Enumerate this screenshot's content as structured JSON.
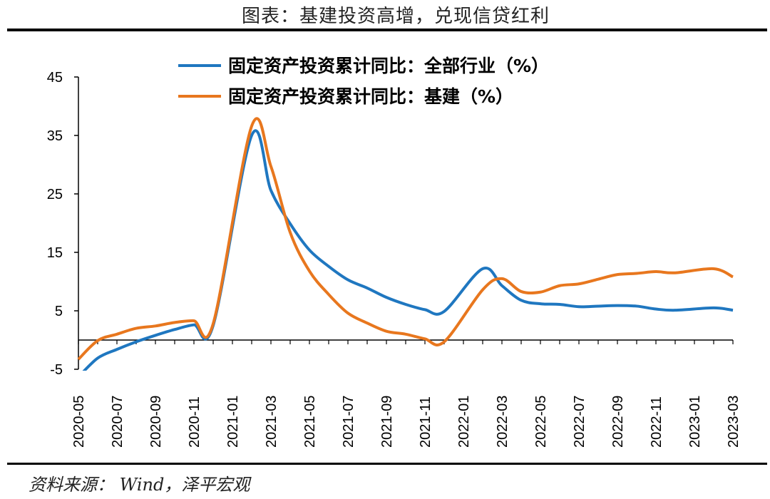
{
  "title": "图表：基建投资高增，兑现信贷红利",
  "source": "资料来源： Wind，泽平宏观",
  "chart_data": {
    "type": "line",
    "title": "图表：基建投资高增，兑现信贷红利",
    "xlabel": "",
    "ylabel": "",
    "ylim": [
      -5,
      45
    ],
    "yticks": [
      "-5",
      "5",
      "15",
      "25",
      "35",
      "45"
    ],
    "grid": false,
    "legend": "top",
    "xticks": [
      "2020-05",
      "2020-07",
      "2020-09",
      "2020-11",
      "2021-01",
      "2021-03",
      "2021-05",
      "2021-07",
      "2021-09",
      "2021-11",
      "2022-01",
      "2022-03",
      "2022-05",
      "2022-07",
      "2022-09",
      "2022-11",
      "2023-01",
      "2023-03"
    ],
    "x": [
      "2020-05",
      "2020-06",
      "2020-07",
      "2020-08",
      "2020-09",
      "2020-10",
      "2020-11",
      "2020-12",
      "2021-01",
      "2021-02",
      "2021-03",
      "2021-04",
      "2021-05",
      "2021-06",
      "2021-07",
      "2021-08",
      "2021-09",
      "2021-10",
      "2021-11",
      "2021-12",
      "2022-01",
      "2022-02",
      "2022-03",
      "2022-04",
      "2022-05",
      "2022-06",
      "2022-07",
      "2022-08",
      "2022-09",
      "2022-10",
      "2022-11",
      "2022-12",
      "2023-01",
      "2023-02",
      "2023-03"
    ],
    "series": [
      {
        "name": "固定资产投资累计同比：全部行业（%）",
        "color": "#1f77c0",
        "values": [
          -6.3,
          -3.1,
          -1.6,
          -0.3,
          0.8,
          1.8,
          2.6,
          2.5,
          null,
          35.0,
          25.6,
          19.9,
          15.4,
          12.6,
          10.3,
          8.9,
          7.3,
          6.1,
          5.2,
          4.9,
          null,
          12.2,
          9.3,
          6.8,
          6.2,
          6.1,
          5.7,
          5.8,
          5.9,
          5.8,
          5.3,
          5.1,
          null,
          5.5,
          5.1
        ]
      },
      {
        "name": "固定资产投资累计同比：基建（%）",
        "color": "#e8771e",
        "values": [
          -3.3,
          -0.1,
          1.0,
          2.0,
          2.4,
          3.0,
          3.3,
          2.8,
          null,
          36.6,
          29.7,
          18.4,
          11.8,
          7.8,
          4.6,
          2.9,
          1.5,
          1.0,
          0.2,
          -0.3,
          null,
          8.6,
          10.5,
          8.3,
          8.2,
          9.3,
          9.6,
          10.4,
          11.2,
          11.4,
          11.7,
          11.5,
          null,
          12.2,
          10.8
        ]
      }
    ]
  }
}
